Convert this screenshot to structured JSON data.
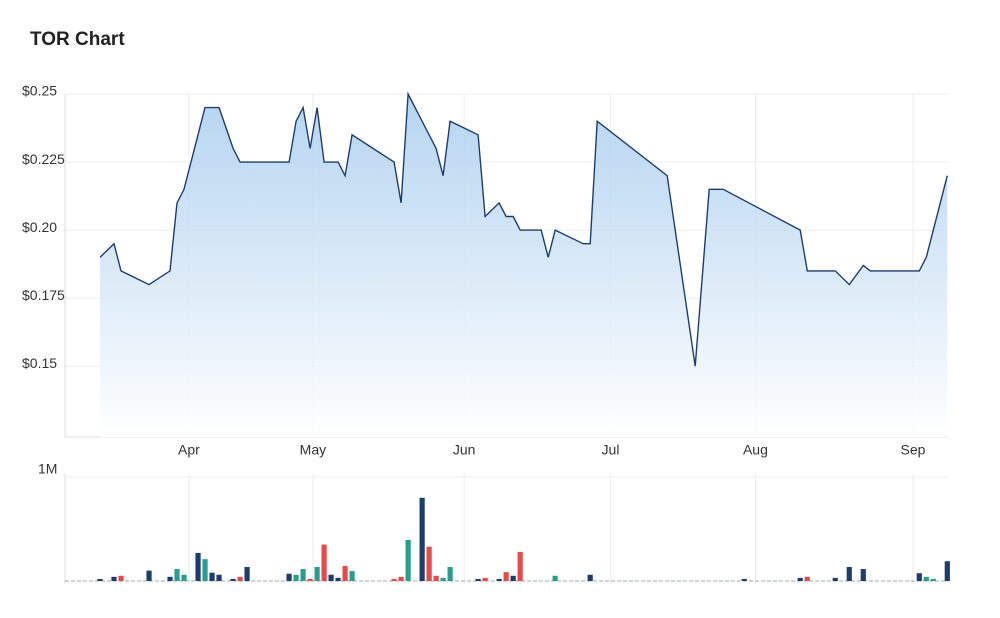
{
  "chart_data": [
    {
      "type": "line",
      "title": "TOR Chart",
      "color": "#1d3d6e",
      "grid": true,
      "x": [
        0,
        2,
        3,
        7,
        10,
        11,
        12,
        14,
        15,
        17,
        19,
        20,
        27,
        28,
        29,
        30,
        31,
        32,
        34,
        35,
        36,
        42,
        43,
        44,
        48,
        49,
        50,
        54,
        55,
        57,
        58,
        59,
        60,
        63,
        64,
        65,
        69,
        70,
        71,
        81,
        85,
        87,
        89,
        100,
        101,
        105,
        107,
        109,
        110,
        117,
        118,
        121
      ],
      "values": [
        0.19,
        0.195,
        0.185,
        0.18,
        0.185,
        0.21,
        0.215,
        0.235,
        0.245,
        0.245,
        0.23,
        0.225,
        0.225,
        0.24,
        0.245,
        0.23,
        0.245,
        0.225,
        0.225,
        0.22,
        0.235,
        0.225,
        0.21,
        0.25,
        0.23,
        0.22,
        0.24,
        0.235,
        0.205,
        0.21,
        0.205,
        0.205,
        0.2,
        0.2,
        0.19,
        0.2,
        0.195,
        0.195,
        0.24,
        0.22,
        0.15,
        0.215,
        0.215,
        0.2,
        0.185,
        0.185,
        0.18,
        0.187,
        0.185,
        0.185,
        0.19,
        0.22
      ],
      "xlim": [
        -5,
        121.1
      ],
      "xticks": [
        {
          "value": 12.7,
          "label": "Apr"
        },
        {
          "value": 30.4,
          "label": "May"
        },
        {
          "value": 52,
          "label": "Jun"
        },
        {
          "value": 72.9,
          "label": "Jul"
        },
        {
          "value": 93.6,
          "label": "Aug"
        },
        {
          "value": 116.1,
          "label": "Sep"
        }
      ],
      "ylim": [
        0.124,
        0.25
      ],
      "yticks": [
        {
          "value": 0.15,
          "label": "$0.15"
        },
        {
          "value": 0.175,
          "label": "$0.175"
        },
        {
          "value": 0.2,
          "label": "$0.20"
        },
        {
          "value": 0.225,
          "label": "$0.225"
        },
        {
          "value": 0.25,
          "label": "$0.25"
        }
      ]
    },
    {
      "type": "bar",
      "x": [
        0,
        2,
        3,
        7,
        10,
        11,
        12,
        14,
        15,
        16,
        17,
        19,
        20,
        21,
        27,
        28,
        29,
        30,
        31,
        32,
        33,
        34,
        35,
        36,
        42,
        43,
        44,
        46,
        47,
        48,
        49,
        50,
        54,
        55,
        57,
        58,
        59,
        60,
        65,
        70,
        92,
        100,
        101,
        105,
        107,
        109,
        117,
        118,
        119,
        121
      ],
      "values": [
        20000,
        40000,
        50000,
        100000,
        40000,
        115000,
        60000,
        270000,
        210000,
        80000,
        60000,
        20000,
        40000,
        135000,
        70000,
        60000,
        115000,
        20000,
        135000,
        350000,
        60000,
        30000,
        145000,
        95000,
        20000,
        40000,
        395000,
        800000,
        330000,
        50000,
        30000,
        135000,
        20000,
        30000,
        20000,
        85000,
        50000,
        280000,
        50000,
        60000,
        20000,
        30000,
        40000,
        30000,
        135000,
        115000,
        75000,
        40000,
        20000,
        190000
      ],
      "colors": [
        "#1d3d6e",
        "#1d3d6e",
        "#e84a4a",
        "#1d3d6e",
        "#1d3d6e",
        "#2a9d8f",
        "#2a9d8f",
        "#1d3d6e",
        "#2a9d8f",
        "#1d3d6e",
        "#1d3d6e",
        "#1d3d6e",
        "#e84a4a",
        "#1d3d6e",
        "#1d3d6e",
        "#2a9d8f",
        "#2a9d8f",
        "#e84a4a",
        "#2a9d8f",
        "#e84a4a",
        "#1d3d6e",
        "#1d3d6e",
        "#e84a4a",
        "#2a9d8f",
        "#e84a4a",
        "#e84a4a",
        "#2a9d8f",
        "#1d3d6e",
        "#e84a4a",
        "#e84a4a",
        "#2a9d8f",
        "#2a9d8f",
        "#1d3d6e",
        "#e84a4a",
        "#1d3d6e",
        "#e84a4a",
        "#1d3d6e",
        "#e84a4a",
        "#2a9d8f",
        "#1d3d6e",
        "#1d3d6e",
        "#1d3d6e",
        "#e84a4a",
        "#1d3d6e",
        "#1d3d6e",
        "#1d3d6e",
        "#1d3d6e",
        "#2a9d8f",
        "#2a9d8f",
        "#1d3d6e"
      ],
      "ylim": [
        0,
        1000000
      ],
      "yticks": [
        {
          "value": 1000000,
          "label": "1M"
        }
      ]
    }
  ]
}
